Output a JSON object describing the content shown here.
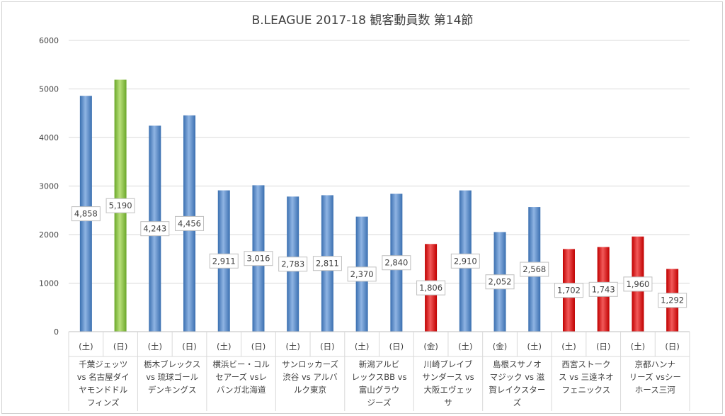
{
  "chart_data": {
    "type": "bar",
    "title": "B.LEAGUE 2017-18 観客動員数 第14節",
    "ylim": [
      0,
      6000
    ],
    "yticks": [
      0,
      1000,
      2000,
      3000,
      4000,
      5000,
      6000
    ],
    "grid": true,
    "colors": {
      "blue": "#4f86c6",
      "green": "#8cc43c",
      "red": "#e01b1b"
    },
    "bars": [
      {
        "day": "(土)",
        "value": 4858,
        "label": "4,858",
        "color": "blue"
      },
      {
        "day": "(日)",
        "value": 5190,
        "label": "5,190",
        "color": "green"
      },
      {
        "day": "(土)",
        "value": 4243,
        "label": "4,243",
        "color": "blue"
      },
      {
        "day": "(日)",
        "value": 4456,
        "label": "4,456",
        "color": "blue"
      },
      {
        "day": "(土)",
        "value": 2911,
        "label": "2,911",
        "color": "blue"
      },
      {
        "day": "(日)",
        "value": 3016,
        "label": "3,016",
        "color": "blue"
      },
      {
        "day": "(土)",
        "value": 2783,
        "label": "2,783",
        "color": "blue"
      },
      {
        "day": "(日)",
        "value": 2811,
        "label": "2,811",
        "color": "blue"
      },
      {
        "day": "(土)",
        "value": 2370,
        "label": "2,370",
        "color": "blue"
      },
      {
        "day": "(日)",
        "value": 2840,
        "label": "2,840",
        "color": "blue"
      },
      {
        "day": "(金)",
        "value": 1806,
        "label": "1,806",
        "color": "red"
      },
      {
        "day": "(土)",
        "value": 2910,
        "label": "2,910",
        "color": "blue"
      },
      {
        "day": "(金)",
        "value": 2052,
        "label": "2,052",
        "color": "blue"
      },
      {
        "day": "(土)",
        "value": 2568,
        "label": "2,568",
        "color": "blue"
      },
      {
        "day": "(土)",
        "value": 1702,
        "label": "1,702",
        "color": "red"
      },
      {
        "day": "(日)",
        "value": 1743,
        "label": "1,743",
        "color": "red"
      },
      {
        "day": "(土)",
        "value": 1960,
        "label": "1,960",
        "color": "red"
      },
      {
        "day": "(日)",
        "value": 1292,
        "label": "1,292",
        "color": "red"
      }
    ],
    "matchups": [
      [
        "千葉ジェッツ",
        "vs 名古屋ダイ",
        "ヤモンドドル",
        "フィンズ"
      ],
      [
        "栃木ブレックス",
        "vs 琉球ゴール",
        "デンキングス"
      ],
      [
        "横浜ビー・コル",
        "セアーズ vsレ",
        "バンガ北海道"
      ],
      [
        "サンロッカーズ",
        "渋谷 vs アルバ",
        "ルク東京"
      ],
      [
        "新潟アルビ",
        "レックスBB vs",
        "富山グラウ",
        "ジーズ"
      ],
      [
        "川崎ブレイブ",
        "サンダース vs",
        "大阪エヴェッ",
        "サ"
      ],
      [
        "島根スサノオ",
        "マジック vs 滋",
        "賀レイクスター",
        "ズ"
      ],
      [
        "西宮ストーク",
        "ス vs 三遠ネオ",
        "フェニックス"
      ],
      [
        "京都ハンナ",
        "リーズ vsシー",
        "ホース三河"
      ]
    ]
  }
}
